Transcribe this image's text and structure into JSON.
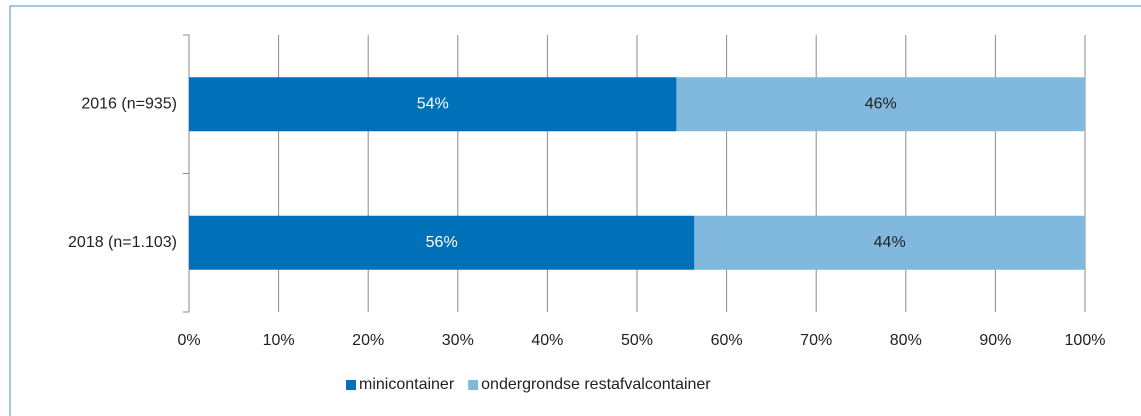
{
  "chart_data": {
    "type": "stacked_barh",
    "categories": [
      "2016 (n=935)",
      "2018 (n=1.103)"
    ],
    "series": [
      {
        "name": "minicontainer",
        "color": "#0070b8",
        "values": [
          54.4,
          56.4
        ],
        "value_labels": [
          "54%",
          "56%"
        ],
        "label_color": "#ffffff"
      },
      {
        "name": "ondergrondse restafvalcontainer",
        "color": "#80b8de",
        "values": [
          45.6,
          43.6
        ],
        "value_labels": [
          "46%",
          "44%"
        ],
        "label_color": "#222222"
      }
    ],
    "xlim": [
      0,
      100
    ],
    "xticks": [
      {
        "value": 0,
        "label": "0%"
      },
      {
        "value": 10,
        "label": "10%"
      },
      {
        "value": 20,
        "label": "20%"
      },
      {
        "value": 30,
        "label": "30%"
      },
      {
        "value": 40,
        "label": "40%"
      },
      {
        "value": 50,
        "label": "50%"
      },
      {
        "value": 60,
        "label": "60%"
      },
      {
        "value": 70,
        "label": "70%"
      },
      {
        "value": 80,
        "label": "80%"
      },
      {
        "value": 90,
        "label": "90%"
      },
      {
        "value": 100,
        "label": "100%"
      }
    ],
    "grid": true,
    "legend": "bottom"
  }
}
